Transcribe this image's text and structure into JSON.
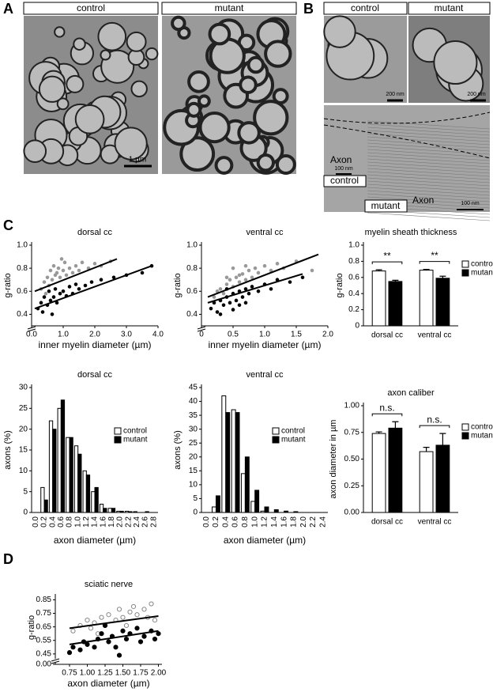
{
  "figure": {
    "panel_labels": [
      "A",
      "B",
      "C",
      "D"
    ],
    "panel_a": {
      "labels": [
        "control",
        "mutant"
      ],
      "scale_bar": "1 µm"
    },
    "panel_b": {
      "top_labels": [
        "control",
        "mutant"
      ],
      "scale_bars": [
        "200 nm",
        "200 nm",
        "100 nm",
        "100 nm"
      ],
      "axon_labels": [
        "Axon",
        "Axon"
      ],
      "bottom_labels": [
        "control",
        "mutant"
      ]
    }
  },
  "chart_data": [
    {
      "type": "scatter",
      "title": "dorsal cc",
      "x_label": "inner myelin diameter (µm)",
      "y_label": "g-ratio",
      "xlim": [
        0,
        4
      ],
      "ylim": [
        0.3,
        1.0
      ],
      "xticks": [
        {
          "value": 0,
          "label": "0.0"
        },
        {
          "value": 1,
          "label": "1.0"
        },
        {
          "value": 2,
          "label": "2.0"
        },
        {
          "value": 3,
          "label": "3.0"
        },
        {
          "value": 4,
          "label": "4.0"
        }
      ],
      "yticks": [
        0.4,
        0.6,
        0.8,
        {
          "value": 1,
          "label": "1.0"
        }
      ],
      "axis_break": true,
      "series": [
        {
          "name": "control",
          "color": "#999999",
          "filled": true,
          "x": [
            0.3,
            0.4,
            0.5,
            0.55,
            0.6,
            0.65,
            0.7,
            0.75,
            0.8,
            0.85,
            0.9,
            1.0,
            1.05,
            1.1,
            1.2,
            1.3,
            1.4,
            1.5,
            1.6,
            1.8,
            2.0,
            2.2,
            2.5,
            0.45,
            0.95
          ],
          "values": [
            0.62,
            0.68,
            0.72,
            0.65,
            0.78,
            0.7,
            0.82,
            0.74,
            0.76,
            0.8,
            0.72,
            0.78,
            0.85,
            0.74,
            0.8,
            0.76,
            0.82,
            0.78,
            0.85,
            0.8,
            0.84,
            0.82,
            0.86,
            0.58,
            0.88
          ],
          "fit": {
            "x": [
              0.1,
              2.7
            ],
            "values": [
              0.6,
              0.88
            ]
          }
        },
        {
          "name": "mutant",
          "color": "#000000",
          "filled": true,
          "x": [
            0.2,
            0.3,
            0.35,
            0.4,
            0.5,
            0.55,
            0.6,
            0.7,
            0.75,
            0.8,
            0.9,
            1.0,
            1.1,
            1.2,
            1.3,
            1.4,
            1.5,
            1.7,
            1.9,
            2.2,
            2.6,
            3.0,
            3.5,
            3.8,
            0.65
          ],
          "values": [
            0.45,
            0.5,
            0.42,
            0.55,
            0.48,
            0.6,
            0.52,
            0.55,
            0.62,
            0.5,
            0.58,
            0.6,
            0.56,
            0.64,
            0.58,
            0.66,
            0.62,
            0.65,
            0.68,
            0.7,
            0.72,
            0.74,
            0.76,
            0.82,
            0.4
          ],
          "fit": {
            "x": [
              0.1,
              3.8
            ],
            "values": [
              0.45,
              0.82
            ]
          }
        }
      ]
    },
    {
      "type": "scatter",
      "title": "ventral cc",
      "x_label": "inner myelin diameter (µm)",
      "y_label": "g-ratio",
      "xlim": [
        0,
        2
      ],
      "ylim": [
        0.3,
        1.0
      ],
      "xticks": [
        0,
        0.5,
        {
          "value": 1,
          "label": "1.0"
        },
        1.5,
        {
          "value": 2,
          "label": "2.0"
        }
      ],
      "yticks": [
        0.4,
        0.6,
        0.8,
        {
          "value": 1,
          "label": "1.0"
        }
      ],
      "axis_break": true,
      "series": [
        {
          "name": "control",
          "color": "#999999",
          "filled": true,
          "x": [
            0.2,
            0.25,
            0.3,
            0.35,
            0.4,
            0.45,
            0.5,
            0.55,
            0.6,
            0.65,
            0.7,
            0.75,
            0.8,
            0.85,
            0.9,
            1.0,
            1.1,
            1.2,
            1.3,
            1.5,
            1.75,
            0.5,
            0.6,
            0.4,
            0.7
          ],
          "values": [
            0.55,
            0.6,
            0.62,
            0.58,
            0.66,
            0.7,
            0.64,
            0.72,
            0.68,
            0.75,
            0.7,
            0.78,
            0.72,
            0.8,
            0.76,
            0.82,
            0.78,
            0.84,
            0.8,
            0.86,
            0.78,
            0.8,
            0.74,
            0.72,
            0.82
          ],
          "fit": {
            "x": [
              0.1,
              1.85
            ],
            "values": [
              0.55,
              0.92
            ]
          }
        },
        {
          "name": "mutant",
          "color": "#000000",
          "filled": true,
          "x": [
            0.15,
            0.2,
            0.25,
            0.3,
            0.35,
            0.4,
            0.45,
            0.5,
            0.55,
            0.6,
            0.65,
            0.7,
            0.75,
            0.8,
            0.9,
            1.0,
            1.1,
            1.2,
            1.4,
            1.6,
            0.3,
            0.5,
            0.6,
            0.4,
            0.7
          ],
          "values": [
            0.45,
            0.5,
            0.42,
            0.52,
            0.48,
            0.55,
            0.5,
            0.58,
            0.52,
            0.6,
            0.55,
            0.62,
            0.58,
            0.64,
            0.6,
            0.66,
            0.62,
            0.7,
            0.68,
            0.72,
            0.4,
            0.44,
            0.48,
            0.62,
            0.5
          ],
          "fit": {
            "x": [
              0.1,
              1.6
            ],
            "values": [
              0.5,
              0.75
            ]
          }
        }
      ]
    },
    {
      "type": "bar",
      "title": "myelin sheath thickness",
      "y_label": "g-ratio",
      "categories": [
        "dorsal cc",
        "ventral cc"
      ],
      "ylim": [
        0,
        1
      ],
      "yticks": [
        0,
        0.2,
        0.4,
        0.6,
        0.8,
        {
          "value": 1,
          "label": "1.0"
        }
      ],
      "significance": [
        "**",
        "**"
      ],
      "series": [
        {
          "name": "control",
          "color": "#ffffff",
          "values": [
            0.68,
            0.69
          ],
          "errors": [
            0.015,
            0.01
          ]
        },
        {
          "name": "mutant",
          "color": "#000000",
          "values": [
            0.55,
            0.59
          ],
          "errors": [
            0.015,
            0.025
          ]
        }
      ]
    },
    {
      "type": "bar",
      "title": "dorsal cc",
      "x_label": "axon diameter (µm)",
      "y_label": "axons (%)",
      "categories": [
        "0.0",
        "0.2",
        "0.4",
        "0.6",
        "0.8",
        "1.0",
        "1.2",
        "1.4",
        "1.6",
        "1.8",
        "2.0",
        "2.2",
        "2.4",
        "2.6",
        "2.8"
      ],
      "ylim": [
        0,
        30
      ],
      "yticks": [
        0,
        5,
        10,
        15,
        20,
        25,
        30
      ],
      "series": [
        {
          "name": "control",
          "color": "#ffffff",
          "values": [
            0,
            6,
            22,
            25,
            18,
            16,
            10,
            5,
            2,
            1,
            0.3,
            0.3,
            0.2,
            0,
            0
          ]
        },
        {
          "name": "mutant",
          "color": "#000000",
          "values": [
            0,
            3,
            20,
            27,
            18,
            14,
            9,
            6,
            1,
            1,
            0.3,
            0.2,
            0,
            0.2,
            0
          ]
        }
      ]
    },
    {
      "type": "bar",
      "title": "ventral cc",
      "x_label": "axon diameter (µm)",
      "y_label": "axons (%)",
      "categories": [
        "0.0",
        "0.2",
        "0.4",
        "0.6",
        "0.8",
        "1.0",
        "1.2",
        "1.4",
        "1.6",
        "1.8",
        "2.0",
        "2.2",
        "2.4"
      ],
      "ylim": [
        0,
        45
      ],
      "yticks": [
        0,
        5,
        10,
        15,
        20,
        25,
        30,
        35,
        40,
        45
      ],
      "series": [
        {
          "name": "control",
          "color": "#ffffff",
          "values": [
            0,
            2,
            42,
            37,
            14,
            4,
            0.5,
            0,
            0,
            0,
            0,
            0,
            0
          ]
        },
        {
          "name": "mutant",
          "color": "#000000",
          "values": [
            0,
            6,
            36,
            36,
            20,
            8,
            2,
            1,
            0.5,
            0.3,
            0,
            0,
            0
          ]
        }
      ]
    },
    {
      "type": "bar",
      "title": "axon caliber",
      "y_label": "axon diameter in µm",
      "categories": [
        "dorsal cc",
        "ventral cc"
      ],
      "ylim": [
        0,
        1
      ],
      "yticks": [
        {
          "value": 0,
          "label": "0.00"
        },
        {
          "value": 0.25,
          "label": "0.25"
        },
        {
          "value": 0.5,
          "label": "0.50"
        },
        {
          "value": 0.75,
          "label": "0.75"
        },
        {
          "value": 1,
          "label": "1.00"
        }
      ],
      "significance": [
        "n.s.",
        "n.s."
      ],
      "series": [
        {
          "name": "control",
          "color": "#ffffff",
          "values": [
            0.74,
            0.57
          ],
          "errors": [
            0.015,
            0.04
          ]
        },
        {
          "name": "mutant",
          "color": "#000000",
          "values": [
            0.79,
            0.63
          ],
          "errors": [
            0.06,
            0.11
          ]
        }
      ]
    },
    {
      "type": "scatter",
      "title": "sciatic nerve",
      "x_label": "axon diameter (µm)",
      "y_label": "g-ratio",
      "xlim": [
        0.55,
        2.05
      ],
      "ylim": [
        0.42,
        0.87
      ],
      "xticks": [
        {
          "value": 0.75,
          "label": "0.75"
        },
        {
          "value": 1,
          "label": "1.00"
        },
        {
          "value": 1.25,
          "label": "1.25"
        },
        {
          "value": 1.5,
          "label": "1.50"
        },
        {
          "value": 1.75,
          "label": "1.75"
        },
        {
          "value": 2,
          "label": "2.00"
        }
      ],
      "yticks": [
        {
          "value": 0,
          "label": "0.00"
        },
        0.45,
        0.55,
        0.65,
        0.75,
        0.85
      ],
      "axis_break": true,
      "series": [
        {
          "name": "control",
          "color": "#888888",
          "filled": false,
          "x": [
            0.8,
            0.9,
            1.0,
            1.05,
            1.1,
            1.2,
            1.25,
            1.3,
            1.4,
            1.45,
            1.5,
            1.6,
            1.65,
            1.7,
            1.8,
            1.85,
            1.9,
            1.95,
            1.15,
            1.55
          ],
          "values": [
            0.62,
            0.66,
            0.7,
            0.64,
            0.68,
            0.72,
            0.66,
            0.74,
            0.7,
            0.78,
            0.72,
            0.76,
            0.8,
            0.74,
            0.78,
            0.72,
            0.82,
            0.7,
            0.6,
            0.66
          ],
          "fit": {
            "x": [
              0.75,
              2.0
            ],
            "values": [
              0.64,
              0.73
            ]
          }
        },
        {
          "name": "mutant",
          "color": "#000000",
          "filled": true,
          "x": [
            0.75,
            0.8,
            0.9,
            0.95,
            1.0,
            1.1,
            1.15,
            1.2,
            1.3,
            1.35,
            1.4,
            1.5,
            1.55,
            1.6,
            1.7,
            1.75,
            1.8,
            1.9,
            1.95,
            2.0,
            1.25,
            1.45
          ],
          "values": [
            0.46,
            0.5,
            0.48,
            0.54,
            0.52,
            0.5,
            0.56,
            0.6,
            0.54,
            0.58,
            0.5,
            0.62,
            0.56,
            0.6,
            0.64,
            0.54,
            0.58,
            0.62,
            0.56,
            0.6,
            0.66,
            0.44
          ],
          "fit": {
            "x": [
              0.75,
              2.0
            ],
            "values": [
              0.52,
              0.62
            ]
          }
        }
      ]
    }
  ]
}
